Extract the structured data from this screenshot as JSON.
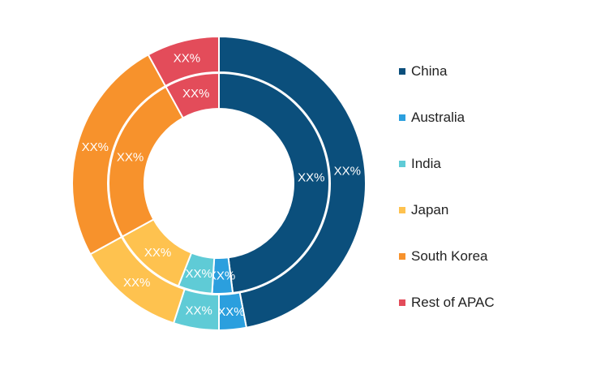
{
  "chart_data": {
    "type": "donut",
    "categories": [
      "China",
      "Australia",
      "India",
      "Japan",
      "South Korea",
      "Rest of APAC"
    ],
    "colors": [
      "#0b4f7c",
      "#2b9fde",
      "#5fcbd6",
      "#fec24f",
      "#f7922c",
      "#e34c5a"
    ],
    "series": [
      {
        "ring": "inner",
        "values": [
          48,
          3,
          5,
          11,
          25,
          8
        ],
        "labels": [
          "XX%",
          "XX%",
          "XX%",
          "XX%",
          "XX%",
          "XX%"
        ]
      },
      {
        "ring": "outer",
        "values": [
          47,
          3,
          5,
          12,
          25,
          8
        ],
        "labels": [
          "XX%",
          "XX%",
          "XX%",
          "XX%",
          "XX%",
          "XX%"
        ]
      }
    ],
    "legend_position": "right"
  }
}
